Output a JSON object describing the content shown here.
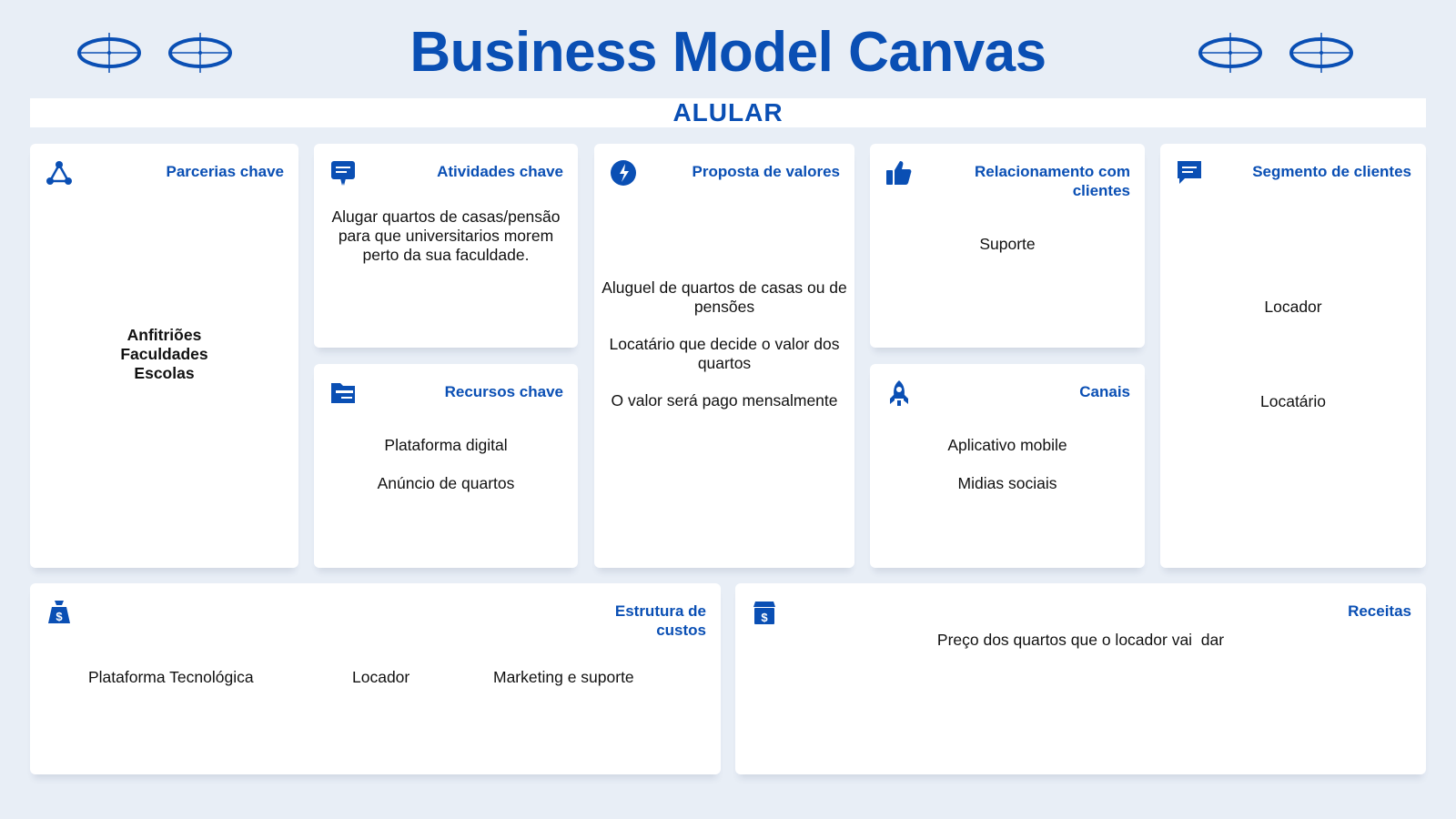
{
  "title": "Business Model Canvas",
  "subtitle": "ALULAR",
  "colors": {
    "accent": "#0a4fb4",
    "background": "#e8eef6",
    "card": "#ffffff"
  },
  "parcerias": {
    "heading": "Parcerias chave",
    "icon": "network-nodes-icon",
    "items": [
      "Anfitriões",
      "Faculdades",
      "Escolas"
    ]
  },
  "atividades": {
    "heading": "Atividades chave",
    "icon": "certificate-icon",
    "text": "Alugar quartos de casas/pensão para que universitarios morem perto da sua faculdade."
  },
  "recursos": {
    "heading": "Recursos chave",
    "icon": "folder-icon",
    "items": [
      "Plataforma digital",
      "Anúncio de quartos"
    ]
  },
  "proposta": {
    "heading": "Proposta de valores",
    "icon": "gift-icon",
    "items": [
      "Aluguel de quartos de casas ou de pensões",
      "Locatário que decide o valor dos quartos",
      "O valor será pago mensalmente"
    ]
  },
  "relacionamento": {
    "heading": "Relacionamento com clientes",
    "icon": "thumbs-up-icon",
    "items": [
      "Suporte"
    ]
  },
  "canais": {
    "heading": "Canais",
    "icon": "rocket-icon",
    "items": [
      "Aplicativo mobile",
      "Midias sociais"
    ]
  },
  "segmento": {
    "heading": "Segmento de clientes",
    "icon": "chat-bubble-icon",
    "items": [
      "Locador",
      "Locatário"
    ]
  },
  "custos": {
    "heading": "Estrutura de custos",
    "icon": "money-bag-icon",
    "items": [
      "Plataforma Tecnológica",
      "Locador",
      "Marketing e suporte"
    ]
  },
  "receitas": {
    "heading": "Receitas",
    "icon": "cash-register-icon",
    "text": "Preço dos quartos que o locador vai  dar"
  }
}
